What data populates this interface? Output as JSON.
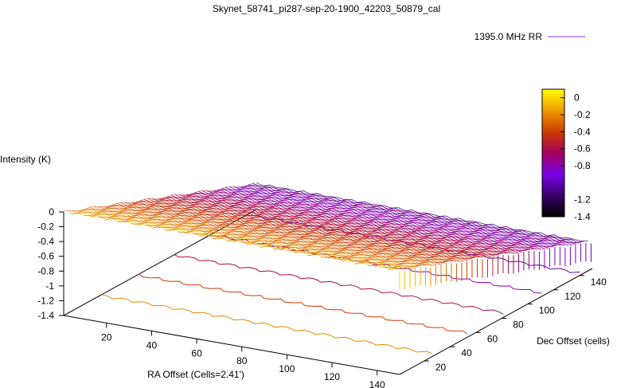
{
  "chart_data": {
    "type": "surface",
    "title": "Skynet_58741_pi287-sep-20-1900_42203_50879_cal",
    "xlabel": "RA Offset (Cells=2.41')",
    "ylabel": "Dec Offset (cells)",
    "zlabel": "Intensity (K)",
    "legend": {
      "label": "1395.0 MHz RR",
      "color": "#8a2be2",
      "placement": "top-right"
    },
    "x_ticks": [
      "20",
      "40",
      "60",
      "80",
      "100",
      "120",
      "140"
    ],
    "y_ticks": [
      "20",
      "40",
      "60",
      "80",
      "100",
      "120",
      "140"
    ],
    "z_ticks": [
      "0",
      "-0.2",
      "-0.4",
      "-0.6",
      "-0.8",
      "-1",
      "-1.2",
      "-1.4"
    ],
    "colorbar_ticks": [
      "0",
      "-0.2",
      "-0.4",
      "-0.6",
      "-0.8",
      "-1.2",
      "-1.4"
    ],
    "xlim": [
      1,
      150
    ],
    "ylim": [
      1,
      150
    ],
    "zlim": [
      -1.4,
      0.1
    ],
    "colormap": [
      "#000000",
      "#3a0068",
      "#7a00e6",
      "#a4005c",
      "#cc3c00",
      "#f09a00",
      "#ffff00"
    ],
    "surface_model": {
      "description": "approximately planar calibrated drift surface; intensity falls linearly with Dec offset",
      "z_at_dec_1": 0.0,
      "z_at_dec_150": -1.05
    },
    "contour_levels": [
      -0.2,
      -0.4,
      -0.6,
      -0.8,
      -1.0
    ]
  }
}
